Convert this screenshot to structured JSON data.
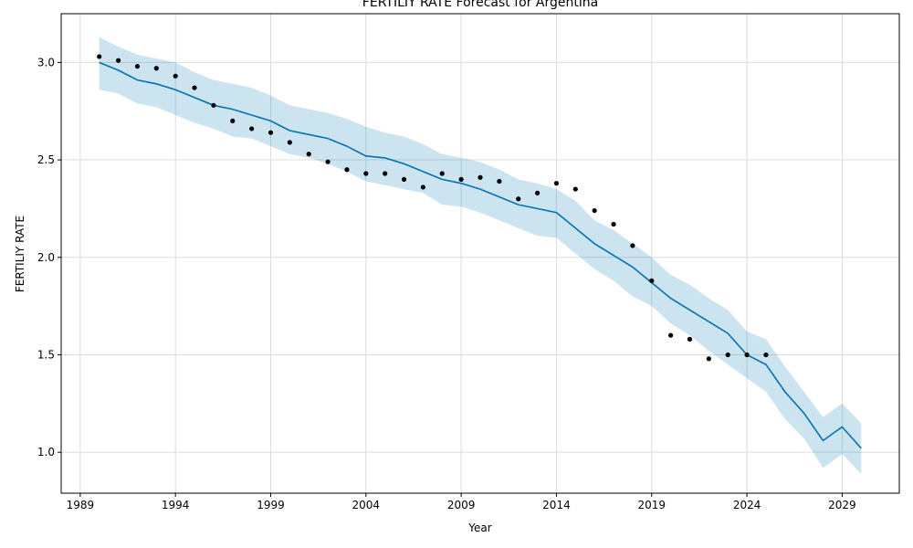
{
  "chart_data": {
    "type": "line",
    "title": "FERTILIY RATE Forecast for Argentina",
    "xlabel": "Year",
    "ylabel": "FERTILIY RATE",
    "xlim": [
      1988,
      2032
    ],
    "ylim": [
      0.79,
      3.25
    ],
    "xticks": [
      1989,
      1994,
      1999,
      2004,
      2009,
      2014,
      2019,
      2024,
      2029
    ],
    "yticks": [
      1.0,
      1.5,
      2.0,
      2.5,
      3.0
    ],
    "ytick_labels": [
      "1.0",
      "1.5",
      "2.0",
      "2.5",
      "3.0"
    ],
    "grid": true,
    "colors": {
      "forecast": "#0072B2",
      "interval": "#0072B2",
      "actual": "#000000"
    },
    "x": [
      1990,
      1991,
      1992,
      1993,
      1994,
      1995,
      1996,
      1997,
      1998,
      1999,
      2000,
      2001,
      2002,
      2003,
      2004,
      2005,
      2006,
      2007,
      2008,
      2009,
      2010,
      2011,
      2012,
      2013,
      2014,
      2015,
      2016,
      2017,
      2018,
      2019,
      2020,
      2021,
      2022,
      2023,
      2024,
      2025,
      2026,
      2027,
      2028,
      2029,
      2030
    ],
    "series": [
      {
        "role": "forecast",
        "values": [
          3.0,
          2.96,
          2.91,
          2.89,
          2.86,
          2.82,
          2.78,
          2.76,
          2.73,
          2.7,
          2.65,
          2.63,
          2.61,
          2.57,
          2.52,
          2.51,
          2.48,
          2.44,
          2.4,
          2.38,
          2.35,
          2.31,
          2.27,
          2.25,
          2.23,
          2.15,
          2.07,
          2.01,
          1.95,
          1.87,
          1.79,
          1.73,
          1.67,
          1.61,
          1.5,
          1.45,
          1.31,
          1.2,
          1.06,
          1.13,
          1.02
        ]
      },
      {
        "role": "upper",
        "values": [
          3.13,
          3.08,
          3.04,
          3.02,
          3.0,
          2.95,
          2.91,
          2.89,
          2.87,
          2.83,
          2.78,
          2.76,
          2.74,
          2.71,
          2.67,
          2.64,
          2.62,
          2.58,
          2.53,
          2.51,
          2.49,
          2.45,
          2.4,
          2.38,
          2.35,
          2.29,
          2.19,
          2.14,
          2.07,
          2.0,
          1.91,
          1.86,
          1.79,
          1.73,
          1.62,
          1.58,
          1.44,
          1.31,
          1.18,
          1.25,
          1.15
        ]
      },
      {
        "role": "lower",
        "values": [
          2.86,
          2.84,
          2.79,
          2.77,
          2.73,
          2.69,
          2.66,
          2.62,
          2.61,
          2.57,
          2.53,
          2.51,
          2.48,
          2.44,
          2.39,
          2.37,
          2.35,
          2.33,
          2.27,
          2.26,
          2.23,
          2.19,
          2.15,
          2.11,
          2.1,
          2.02,
          1.94,
          1.88,
          1.8,
          1.75,
          1.66,
          1.6,
          1.52,
          1.45,
          1.38,
          1.31,
          1.17,
          1.07,
          0.92,
          0.99,
          0.89
        ]
      }
    ],
    "actual": {
      "x": [
        1990,
        1991,
        1992,
        1993,
        1994,
        1995,
        1996,
        1997,
        1998,
        1999,
        2000,
        2001,
        2002,
        2003,
        2004,
        2005,
        2006,
        2007,
        2008,
        2009,
        2010,
        2011,
        2012,
        2013,
        2014,
        2015,
        2016,
        2017,
        2018,
        2019,
        2020,
        2021,
        2022,
        2023,
        2024,
        2025
      ],
      "values": [
        3.03,
        3.01,
        2.98,
        2.97,
        2.93,
        2.87,
        2.78,
        2.7,
        2.66,
        2.64,
        2.59,
        2.53,
        2.49,
        2.45,
        2.43,
        2.43,
        2.4,
        2.36,
        2.43,
        2.4,
        2.41,
        2.39,
        2.3,
        2.33,
        2.38,
        2.35,
        2.24,
        2.17,
        2.06,
        1.88,
        1.6,
        1.58,
        1.48,
        1.5,
        1.5,
        1.5
      ]
    }
  }
}
